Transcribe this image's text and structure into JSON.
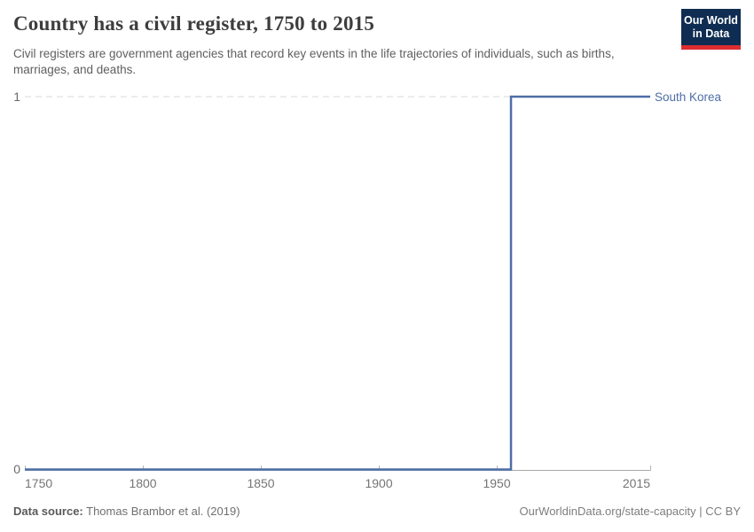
{
  "header": {
    "title": "Country has a civil register, 1750 to 2015",
    "subtitle": "Civil registers are government agencies that record key events in the life trajectories of individuals, such as births, marriages, and deaths."
  },
  "logo": {
    "line1": "Our World",
    "line2": "in Data",
    "bg_color": "#0f2d52",
    "bar_color": "#dc2d30"
  },
  "chart_data": {
    "type": "line",
    "title": "Country has a civil register, 1750 to 2015",
    "xlabel": "",
    "ylabel": "",
    "xlim": [
      1750,
      2015
    ],
    "ylim": [
      0,
      1
    ],
    "x_ticks": [
      1750,
      1800,
      1850,
      1900,
      1950,
      2015
    ],
    "y_ticks": [
      0,
      1
    ],
    "grid": "dashed horizontal gridline at y=1",
    "legend_position": "label right of line end",
    "series": [
      {
        "name": "South Korea",
        "color": "#4d6ea7",
        "points": [
          [
            1750,
            0
          ],
          [
            1956,
            0
          ],
          [
            1956,
            1
          ],
          [
            2015,
            1
          ]
        ]
      }
    ],
    "colors": {
      "gridline": "#d9d9d9",
      "axis": "#a9a9a9",
      "tick": "#b5b5b5"
    }
  },
  "footer": {
    "datasource_label": "Data source:",
    "datasource_value": "Thomas Brambor et al. (2019)",
    "credit": "OurWorldinData.org/state-capacity | CC BY"
  }
}
